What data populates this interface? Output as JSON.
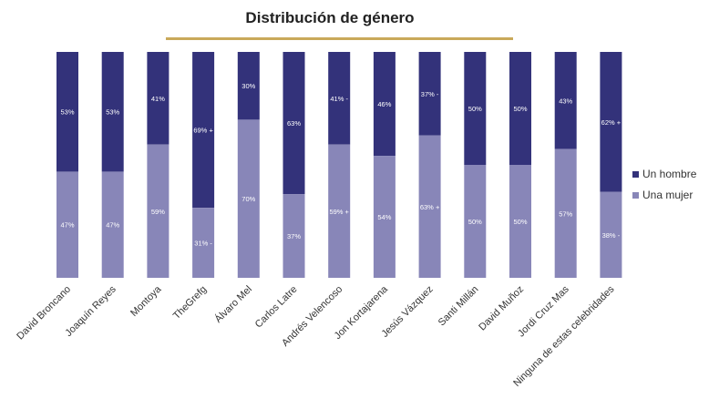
{
  "chart_data": {
    "type": "bar",
    "stacked": true,
    "title": "Distribución de género",
    "xlabel": "",
    "ylabel": "",
    "ylim": [
      0,
      100
    ],
    "grid": false,
    "legend_position": "right",
    "categories": [
      "David Broncano",
      "Joaquín Reyes",
      "Montoya",
      "TheGrefg",
      "Álvaro Mel",
      "Carlos Latre",
      "Andrés Velencoso",
      "Jon Kortajarena",
      "Jesús Vázquez",
      "Santi Millán",
      "David Muñoz",
      "Jordi Cruz Mas",
      "Ninguna de estas celebridades"
    ],
    "series": [
      {
        "name": "Una mujer",
        "color": "#8886b8",
        "values": [
          47,
          47,
          59,
          31,
          70,
          37,
          59,
          54,
          63,
          50,
          50,
          57,
          38
        ],
        "labels": [
          "47%",
          "47%",
          "59%",
          "31% -",
          "70%",
          "37%",
          "59% +",
          "54%",
          "63% +",
          "50%",
          "50%",
          "57%",
          "38% -"
        ]
      },
      {
        "name": "Un hombre",
        "color": "#33327a",
        "values": [
          53,
          53,
          41,
          69,
          30,
          63,
          41,
          46,
          37,
          50,
          50,
          43,
          62
        ],
        "labels": [
          "53%",
          "53%",
          "41%",
          "69% +",
          "30%",
          "63%",
          "41% -",
          "46%",
          "37% -",
          "50%",
          "50%",
          "43%",
          "62% +"
        ]
      }
    ]
  }
}
